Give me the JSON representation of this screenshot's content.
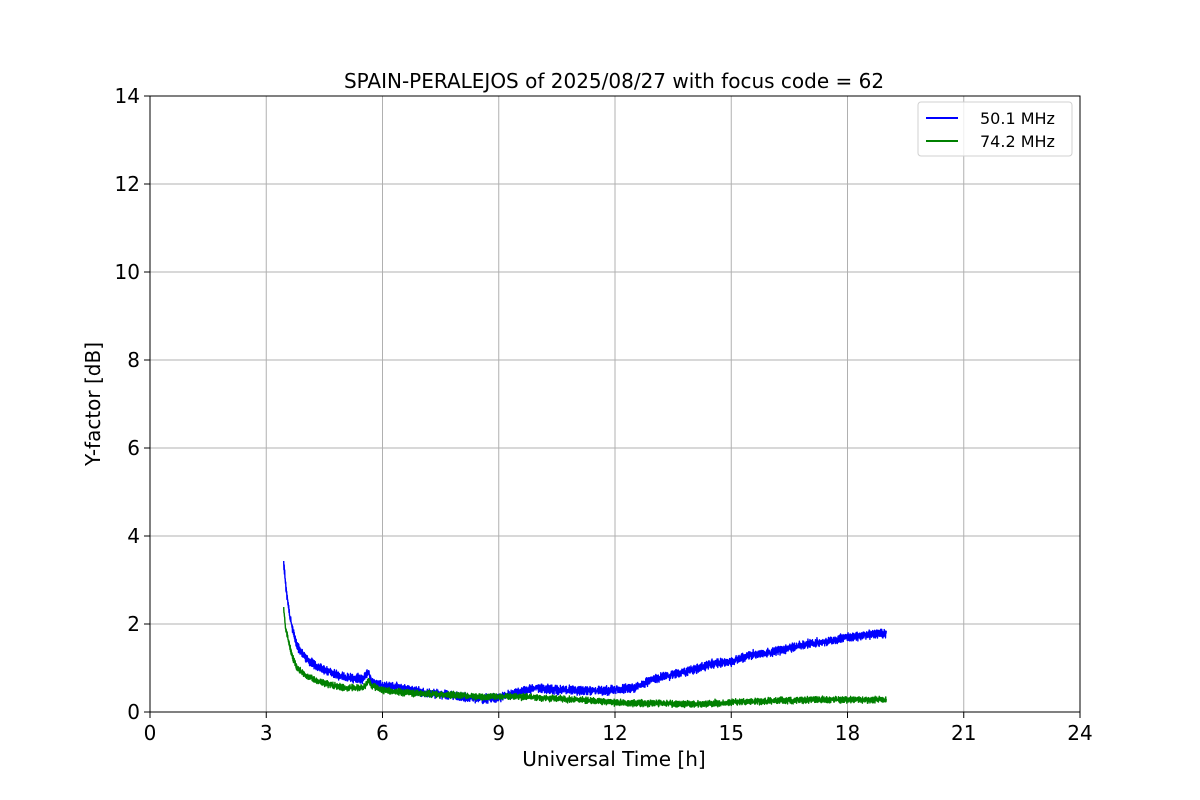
{
  "chart_data": {
    "type": "line",
    "title": "SPAIN-PERALEJOS of 2025/08/27 with focus code = 62",
    "xlabel": "Universal Time [h]",
    "ylabel": "Y-factor [dB]",
    "xlim": [
      0,
      24
    ],
    "ylim": [
      0,
      14
    ],
    "xticks": [
      0,
      3,
      6,
      9,
      12,
      15,
      18,
      21,
      24
    ],
    "yticks": [
      0,
      2,
      4,
      6,
      8,
      10,
      12,
      14
    ],
    "xtick_labels": [
      "0",
      "3",
      "6",
      "9",
      "12",
      "15",
      "18",
      "21",
      "24"
    ],
    "ytick_labels": [
      "0",
      "2",
      "4",
      "6",
      "8",
      "10",
      "12",
      "14"
    ],
    "grid": true,
    "legend_position": "top-right",
    "series": [
      {
        "name": "50.1 MHz",
        "color": "#0000ff",
        "x": [
          3.45,
          3.5,
          3.6,
          3.7,
          3.8,
          4.0,
          4.2,
          4.5,
          5.0,
          5.5,
          5.65,
          5.7,
          6.0,
          6.5,
          7.0,
          7.5,
          8.0,
          8.5,
          9.0,
          9.5,
          10.0,
          10.5,
          11.0,
          11.5,
          12.0,
          12.5,
          13.0,
          13.5,
          14.0,
          14.5,
          15.0,
          15.5,
          16.0,
          16.5,
          17.0,
          17.5,
          18.0,
          18.5,
          19.0
        ],
        "y": [
          3.4,
          2.9,
          2.2,
          1.8,
          1.5,
          1.25,
          1.1,
          0.95,
          0.8,
          0.75,
          0.92,
          0.7,
          0.6,
          0.55,
          0.45,
          0.4,
          0.35,
          0.3,
          0.32,
          0.45,
          0.55,
          0.5,
          0.5,
          0.48,
          0.5,
          0.55,
          0.75,
          0.85,
          0.95,
          1.1,
          1.15,
          1.3,
          1.35,
          1.45,
          1.55,
          1.6,
          1.7,
          1.75,
          1.8
        ],
        "noise": 0.12
      },
      {
        "name": "74.2 MHz",
        "color": "#008000",
        "x": [
          3.45,
          3.5,
          3.6,
          3.7,
          3.8,
          4.0,
          4.2,
          4.5,
          5.0,
          5.5,
          5.65,
          5.7,
          6.0,
          6.5,
          7.0,
          7.5,
          8.0,
          8.5,
          9.0,
          9.5,
          10.0,
          10.5,
          11.0,
          11.5,
          12.0,
          12.5,
          13.0,
          13.5,
          14.0,
          14.5,
          15.0,
          15.5,
          16.0,
          16.5,
          17.0,
          17.5,
          18.0,
          18.5,
          19.0
        ],
        "y": [
          2.35,
          1.9,
          1.5,
          1.2,
          1.0,
          0.85,
          0.75,
          0.65,
          0.55,
          0.55,
          0.72,
          0.6,
          0.5,
          0.45,
          0.42,
          0.4,
          0.38,
          0.35,
          0.35,
          0.35,
          0.33,
          0.3,
          0.28,
          0.25,
          0.22,
          0.2,
          0.2,
          0.18,
          0.18,
          0.2,
          0.22,
          0.24,
          0.25,
          0.26,
          0.28,
          0.28,
          0.28,
          0.28,
          0.28
        ],
        "noise": 0.09
      }
    ]
  }
}
